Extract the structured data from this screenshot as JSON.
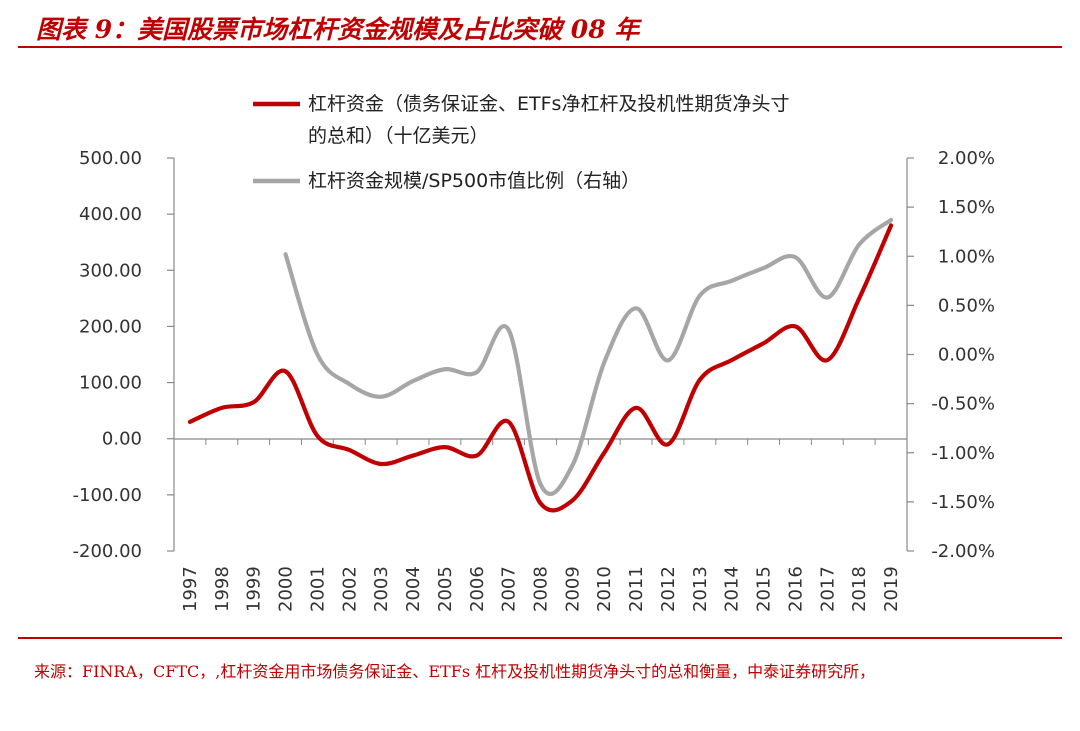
{
  "title": "图表 9：美国股票市场杠杆资金规模及占比突破 08 年",
  "source_note": "来源：FINRA，CFTC，,杠杆资金用市场债务保证金、ETFs 杠杆及投机性期货净头寸的总和衡量，中泰证券研究所，",
  "chart_data": {
    "type": "line",
    "title": "",
    "x": [
      "1997",
      "1998",
      "1999",
      "2000",
      "2001",
      "2002",
      "2003",
      "2004",
      "2005",
      "2006",
      "2007",
      "2008",
      "2009",
      "2010",
      "2011",
      "2012",
      "2013",
      "2014",
      "2015",
      "2016",
      "2017",
      "2018",
      "2019"
    ],
    "y_left": {
      "ylim": [
        -200,
        500
      ],
      "ticks": [
        500,
        400,
        300,
        200,
        100,
        0,
        -100,
        -200
      ],
      "tick_labels": [
        "500.00",
        "400.00",
        "300.00",
        "200.00",
        "100.00",
        "0.00",
        "-100.00",
        "-200.00"
      ]
    },
    "y_right": {
      "ylim": [
        -2.0,
        2.0
      ],
      "ticks": [
        2.0,
        1.5,
        1.0,
        0.5,
        0.0,
        -0.5,
        -1.0,
        -1.5,
        -2.0
      ],
      "tick_labels": [
        "2.00%",
        "1.50%",
        "1.00%",
        "0.50%",
        "0.00%",
        "-0.50%",
        "-1.00%",
        "-1.50%",
        "-2.00%"
      ]
    },
    "series": [
      {
        "name": "杠杆资金（债务保证金、ETFs净杠杆及投机性期货净头寸的总和）（十亿美元）",
        "axis": "left",
        "color": "#c00000",
        "values": [
          30,
          55,
          65,
          120,
          5,
          -20,
          -45,
          -30,
          -15,
          -30,
          30,
          -115,
          -110,
          -25,
          55,
          -10,
          105,
          140,
          170,
          200,
          140,
          250,
          380
        ]
      },
      {
        "name": "杠杆资金规模/SP500市值比例（右轴）",
        "axis": "right",
        "color": "#a6a6a6",
        "values": [
          null,
          null,
          null,
          1.02,
          0.0,
          -0.3,
          -0.43,
          -0.27,
          -0.15,
          -0.18,
          0.25,
          -1.32,
          -1.13,
          -0.08,
          0.47,
          -0.06,
          0.6,
          0.75,
          0.88,
          0.99,
          0.58,
          1.12,
          1.37
        ]
      }
    ]
  }
}
